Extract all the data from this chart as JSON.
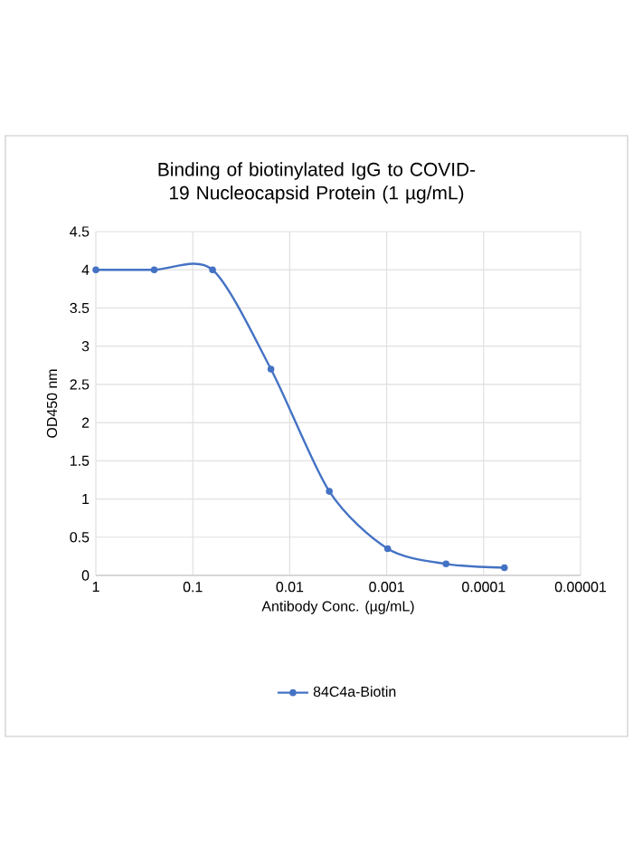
{
  "chart_data": {
    "type": "line",
    "title": "Binding of biotinylated IgG to COVID-19 Nucleocapsid Protein (1 µg/mL)",
    "xlabel": "Antibody Conc. (µg/mL)",
    "ylabel": "OD450 nm",
    "log": "x",
    "xlim": [
      1,
      1e-05
    ],
    "xticks": [
      {
        "value": 1,
        "label": "1"
      },
      {
        "value": 0.1,
        "label": "0.1"
      },
      {
        "value": 0.01,
        "label": "0.01"
      },
      {
        "value": 0.001,
        "label": "0.001"
      },
      {
        "value": 0.0001,
        "label": "0.0001"
      },
      {
        "value": 1e-05,
        "label": "0.00001"
      }
    ],
    "ylim": [
      0,
      4.5
    ],
    "yticks": [
      0,
      0.5,
      1,
      1.5,
      2,
      2.5,
      3,
      3.5,
      4,
      4.5
    ],
    "grid": true,
    "legend": "bottom",
    "marker": "circle",
    "line_style": "solid",
    "series": [
      {
        "name": "84C4a-Biotin",
        "color": "#4472c4",
        "x": [
          1,
          0.25,
          0.0625,
          0.015625,
          0.00390625,
          0.0009765625,
          0.000244140625,
          6.103515625e-05
        ],
        "values": [
          4.0,
          4.0,
          4.0,
          2.7,
          1.1,
          0.35,
          0.15,
          0.1
        ]
      }
    ]
  }
}
